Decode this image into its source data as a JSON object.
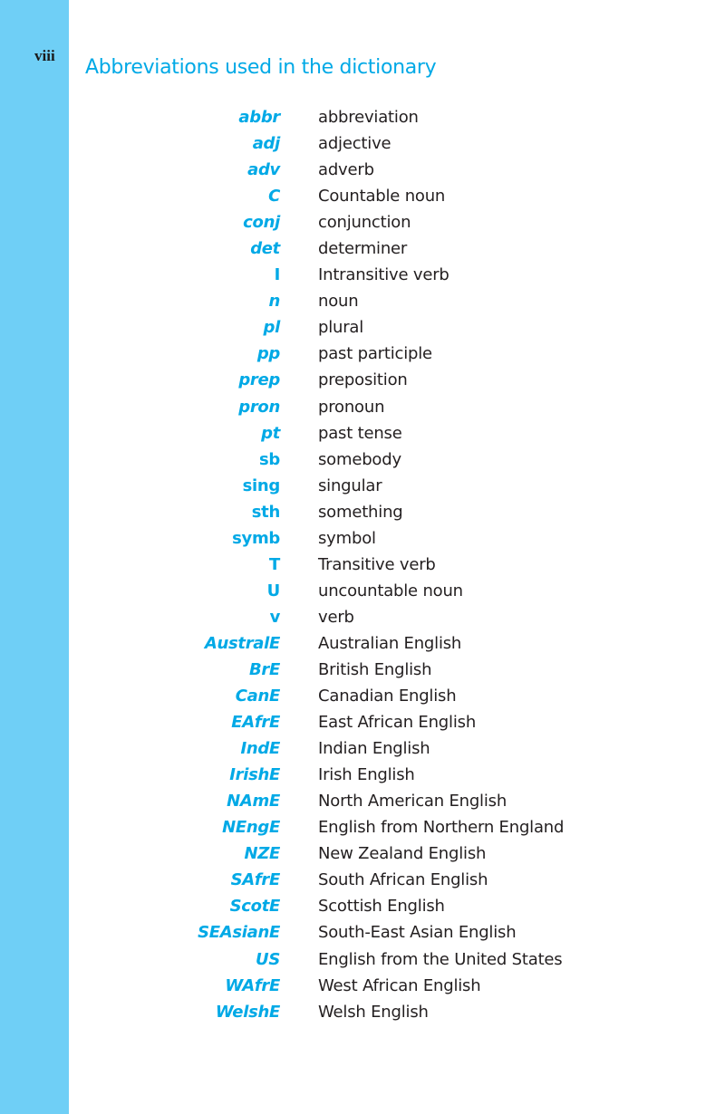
{
  "page_number": "viii",
  "title": "Abbreviations used in the dictionary",
  "colors": {
    "sidebar": "#6fcff6",
    "accent": "#00a9e6"
  },
  "entries": [
    {
      "abbr": "abbr",
      "meaning": "abbreviation",
      "italic": true
    },
    {
      "abbr": "adj",
      "meaning": "adjective",
      "italic": true
    },
    {
      "abbr": "adv",
      "meaning": "adverb",
      "italic": true
    },
    {
      "abbr": "C",
      "meaning": "Countable noun",
      "italic": true
    },
    {
      "abbr": "conj",
      "meaning": "conjunction",
      "italic": true
    },
    {
      "abbr": "det",
      "meaning": "determiner",
      "italic": true
    },
    {
      "abbr": "I",
      "meaning": "Intransitive verb",
      "italic": false
    },
    {
      "abbr": "n",
      "meaning": "noun",
      "italic": true
    },
    {
      "abbr": "pl",
      "meaning": "plural",
      "italic": true
    },
    {
      "abbr": "pp",
      "meaning": "past participle",
      "italic": true
    },
    {
      "abbr": "prep",
      "meaning": "preposition",
      "italic": true
    },
    {
      "abbr": "pron",
      "meaning": "pronoun",
      "italic": true
    },
    {
      "abbr": "pt",
      "meaning": "past tense",
      "italic": true
    },
    {
      "abbr": "sb",
      "meaning": "somebody",
      "italic": false
    },
    {
      "abbr": "sing",
      "meaning": "singular",
      "italic": false
    },
    {
      "abbr": "sth",
      "meaning": "something",
      "italic": false
    },
    {
      "abbr": "symb",
      "meaning": "symbol",
      "italic": false
    },
    {
      "abbr": "T",
      "meaning": "Transitive verb",
      "italic": false
    },
    {
      "abbr": "U",
      "meaning": "uncountable noun",
      "italic": false
    },
    {
      "abbr": "v",
      "meaning": "verb",
      "italic": false
    },
    {
      "abbr": "AustralE",
      "meaning": "Australian English",
      "italic": true
    },
    {
      "abbr": "BrE",
      "meaning": "British English",
      "italic": true
    },
    {
      "abbr": "CanE",
      "meaning": "Canadian English",
      "italic": true
    },
    {
      "abbr": "EAfrE",
      "meaning": "East African English",
      "italic": true
    },
    {
      "abbr": "IndE",
      "meaning": "Indian English",
      "italic": true
    },
    {
      "abbr": "IrishE",
      "meaning": "Irish English",
      "italic": true
    },
    {
      "abbr": "NAmE",
      "meaning": "North American English",
      "italic": true
    },
    {
      "abbr": "NEngE",
      "meaning": "English from Northern England",
      "italic": true
    },
    {
      "abbr": "NZE",
      "meaning": "New Zealand English",
      "italic": true
    },
    {
      "abbr": "SAfrE",
      "meaning": "South African English",
      "italic": true
    },
    {
      "abbr": "ScotE",
      "meaning": "Scottish English",
      "italic": true
    },
    {
      "abbr": "SEAsianE",
      "meaning": "South-East Asian English",
      "italic": true
    },
    {
      "abbr": "US",
      "meaning": "English from the United States",
      "italic": true
    },
    {
      "abbr": "WAfrE",
      "meaning": "West African English",
      "italic": true
    },
    {
      "abbr": "WelshE",
      "meaning": "Welsh English",
      "italic": true
    }
  ]
}
